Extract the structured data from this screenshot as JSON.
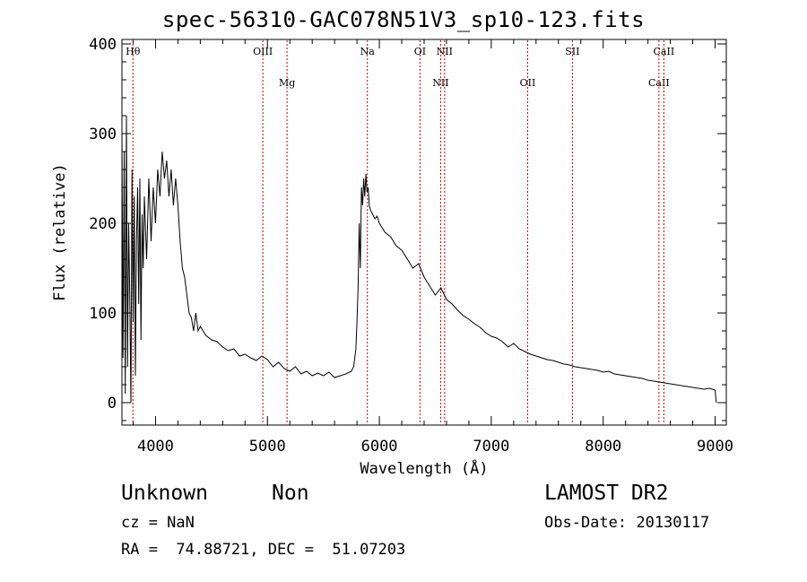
{
  "header": {
    "title": "spec-56310-GAC078N51V3_sp10-123.fits"
  },
  "info": {
    "obj_class": "Unknown",
    "obj_subclass": "Non",
    "survey": "LAMOST DR2",
    "cz": "cz = NaN",
    "obs_date": "Obs-Date: 20130117",
    "radec": "RA =  74.88721, DEC =  51.07203"
  },
  "chart_data": {
    "type": "line",
    "title": "spec-56310-GAC078N51V3_sp10-123.fits",
    "xlabel": "Wavelength (Å)",
    "ylabel": "Flux (relative)",
    "xlim": [
      3700,
      9100
    ],
    "ylim": [
      -25,
      405
    ],
    "xticks": [
      4000,
      5000,
      6000,
      7000,
      8000,
      9000
    ],
    "yticks": [
      0,
      100,
      200,
      300,
      400
    ],
    "grid": false,
    "line_color": "#000000",
    "marker_color": "#cc0000",
    "reference_lines": [
      {
        "label": "Hθ",
        "wavelength": 3798,
        "row": 0
      },
      {
        "label": "OIII",
        "wavelength": 4959,
        "row": 0
      },
      {
        "label": "Mg",
        "wavelength": 5175,
        "row": 1
      },
      {
        "label": "Na",
        "wavelength": 5893,
        "row": 0
      },
      {
        "label": "OI",
        "wavelength": 6363,
        "row": 0
      },
      {
        "label": "NII",
        "wavelength": 6548,
        "row": 1
      },
      {
        "label": "NII",
        "wavelength": 6583,
        "row": 0
      },
      {
        "label": "OII",
        "wavelength": 7325,
        "row": 1
      },
      {
        "label": "SII",
        "wavelength": 7725,
        "row": 0
      },
      {
        "label": "CaII",
        "wavelength": 8498,
        "row": 1
      },
      {
        "label": "CaII",
        "wavelength": 8542,
        "row": 0
      }
    ],
    "series": [
      {
        "x": [
          3700,
          3710,
          3720,
          3730,
          3740,
          3750,
          3760,
          3770,
          3780,
          3790,
          3800,
          3810,
          3820,
          3830,
          3840,
          3850,
          3860,
          3870,
          3880,
          3890,
          3900,
          3920,
          3940,
          3960,
          3980,
          4000,
          4020,
          4040,
          4060,
          4080,
          4100,
          4120,
          4140,
          4160,
          4180,
          4200,
          4220,
          4240,
          4260,
          4280,
          4300,
          4320,
          4340,
          4360,
          4380,
          4400,
          4450,
          4500,
          4550,
          4600,
          4650,
          4700,
          4750,
          4800,
          4850,
          4900,
          4950,
          5000,
          5050,
          5100,
          5150,
          5200,
          5250,
          5300,
          5350,
          5400,
          5450,
          5500,
          5550,
          5600,
          5650,
          5700,
          5750,
          5770,
          5790,
          5800,
          5810,
          5820,
          5830,
          5840,
          5850,
          5860,
          5870,
          5880,
          5890,
          5900,
          5910,
          5920,
          5940,
          5960,
          5980,
          6000,
          6050,
          6100,
          6150,
          6200,
          6250,
          6300,
          6350,
          6400,
          6450,
          6500,
          6550,
          6600,
          6650,
          6700,
          6750,
          6800,
          6850,
          6900,
          6950,
          7000,
          7050,
          7100,
          7150,
          7200,
          7250,
          7300,
          7350,
          7400,
          7450,
          7500,
          7550,
          7600,
          7650,
          7700,
          7750,
          7800,
          7850,
          7900,
          7950,
          8000,
          8050,
          8100,
          8150,
          8200,
          8250,
          8300,
          8350,
          8400,
          8450,
          8500,
          8550,
          8600,
          8650,
          8700,
          8750,
          8800,
          8850,
          8900,
          8950,
          9000,
          9010
        ],
        "y": [
          300,
          50,
          280,
          10,
          320,
          40,
          200,
          120,
          0,
          260,
          90,
          230,
          30,
          180,
          240,
          110,
          250,
          70,
          210,
          150,
          230,
          160,
          250,
          180,
          240,
          200,
          260,
          230,
          280,
          250,
          270,
          230,
          260,
          220,
          250,
          220,
          180,
          150,
          140,
          120,
          100,
          95,
          80,
          100,
          80,
          85,
          75,
          70,
          68,
          62,
          58,
          60,
          52,
          54,
          50,
          47,
          52,
          48,
          40,
          45,
          38,
          35,
          40,
          32,
          35,
          30,
          33,
          30,
          34,
          28,
          30,
          32,
          35,
          40,
          60,
          90,
          130,
          200,
          150,
          240,
          220,
          250,
          230,
          255,
          235,
          240,
          220,
          215,
          210,
          205,
          208,
          200,
          190,
          185,
          175,
          170,
          160,
          150,
          155,
          140,
          130,
          120,
          128,
          115,
          110,
          103,
          97,
          93,
          88,
          84,
          78,
          74,
          72,
          68,
          62,
          66,
          60,
          57,
          54,
          52,
          50,
          48,
          47,
          45,
          43,
          42,
          40,
          39,
          38,
          37,
          36,
          34,
          35,
          32,
          31,
          30,
          29,
          28,
          27,
          25,
          24,
          23,
          22,
          21,
          20,
          19,
          18,
          17,
          16,
          15,
          16,
          14,
          0
        ]
      }
    ]
  }
}
